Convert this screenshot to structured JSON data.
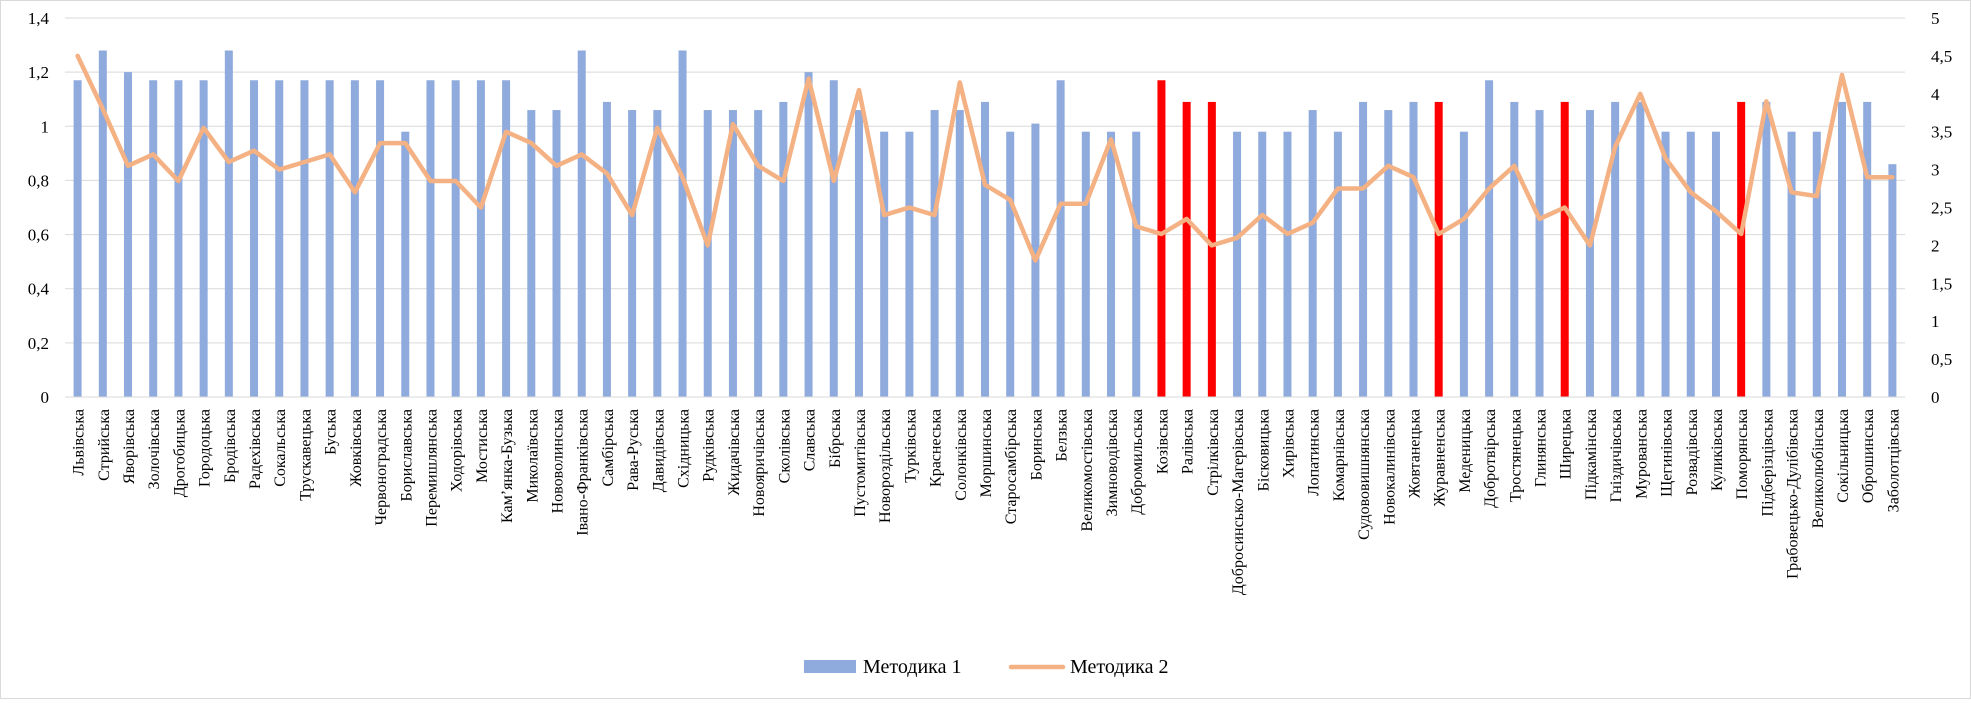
{
  "chart_data": {
    "type": "bar",
    "title": "",
    "xlabel": "",
    "ylabel": "",
    "ylim": [
      0,
      1.4
    ],
    "y2lim": [
      0,
      5
    ],
    "yticks": [
      "0",
      "0,2",
      "0,4",
      "0,6",
      "0,8",
      "1",
      "1,2",
      "1,4"
    ],
    "y2ticks": [
      "0",
      "0,5",
      "1",
      "1,5",
      "2",
      "2,5",
      "3",
      "3,5",
      "4",
      "4,5",
      "5"
    ],
    "grid": true,
    "legend_position": "bottom",
    "categories": [
      "Львівська",
      "Стрийська",
      "Яворівська",
      "Золочівська",
      "Дрогобицька",
      "Городоцька",
      "Бродівська",
      "Радехівська",
      "Сокальська",
      "Трускавецька",
      "Буська",
      "Жовківська",
      "Червоноградська",
      "Бориславська",
      "Перемишлянська",
      "Ходорівська",
      "Мостиська",
      "Кам’янка-Бузька",
      "Миколаївська",
      "Нововолинська",
      "Івано-Франківська",
      "Самбірська",
      "Рава-Руська",
      "Давидівська",
      "Східницька",
      "Рудківська",
      "Жидачівська",
      "Новояричівська",
      "Сколівська",
      "Славська",
      "Бібрська",
      "Пустомитівська",
      "Новороздільська",
      "Турківська",
      "Краснеська",
      "Солонківська",
      "Моршинська",
      "Старосамбірська",
      "Боринська",
      "Белзька",
      "Великомостівська",
      "Зимноводівська",
      "Добромильська",
      "Козівська",
      "Ралівська",
      "Стрілківська",
      "Добросинсько-Магерівська",
      "Бісковицька",
      "Хирівська",
      "Лопатинська",
      "Комарнівська",
      "Судововишнянська",
      "Новокалинівська",
      "Жовтанецька",
      "Журавненська",
      "Меденицька",
      "Добротвірська",
      "Тростянецька",
      "Глинянська",
      "Ширецька",
      "Підкамінська",
      "Гніздичівська",
      "Мурованська",
      "Щегинівська",
      "Розвадівська",
      "Куликівська",
      "Поморянська",
      "Підберізцівська",
      "Грабовецько-Дулібівська",
      "Великолюбінська",
      "Сокільницька",
      "Оброшинська",
      "Заболотцівська"
    ],
    "series": [
      {
        "name": "Методика 1",
        "axis": "left",
        "color": "#8faadc",
        "values": [
          1.17,
          1.28,
          1.2,
          1.17,
          1.17,
          1.17,
          1.28,
          1.17,
          1.17,
          1.17,
          1.17,
          1.17,
          1.17,
          0.98,
          1.17,
          1.17,
          1.17,
          1.17,
          1.06,
          1.06,
          1.28,
          1.09,
          1.06,
          1.06,
          1.28,
          1.06,
          1.06,
          1.06,
          1.09,
          1.2,
          1.17,
          1.06,
          0.98,
          0.98,
          1.06,
          1.06,
          1.09,
          0.98,
          1.01,
          1.17,
          0.98,
          0.98,
          0.98,
          1.17,
          1.09,
          1.09,
          0.98,
          0.98,
          0.98,
          1.06,
          0.98,
          1.09,
          1.06,
          1.09,
          1.09,
          0.98,
          1.17,
          1.09,
          1.06,
          1.09,
          1.06,
          1.09,
          1.09,
          0.98,
          0.98,
          0.98,
          1.09,
          1.09,
          0.98,
          0.98,
          1.09,
          1.09,
          0.86
        ],
        "highlight_color": "#ff0000",
        "highlighted": [
          "Козівська",
          "Ралівська",
          "Стрілківська",
          "Журавненська",
          "Ширецька",
          "Поморянська"
        ]
      },
      {
        "name": "Методика 2",
        "axis": "right",
        "color": "#f4b183",
        "values": [
          4.5,
          3.8,
          3.05,
          3.2,
          2.85,
          3.55,
          3.1,
          3.25,
          3.0,
          3.1,
          3.2,
          2.7,
          3.35,
          3.35,
          2.85,
          2.85,
          2.5,
          3.5,
          3.35,
          3.05,
          3.2,
          2.95,
          2.4,
          3.55,
          2.9,
          2.0,
          3.6,
          3.05,
          2.85,
          4.2,
          2.85,
          4.05,
          2.4,
          2.5,
          2.4,
          4.15,
          2.8,
          2.6,
          1.8,
          2.55,
          2.55,
          3.4,
          2.25,
          2.15,
          2.35,
          2.0,
          2.1,
          2.4,
          2.15,
          2.3,
          2.75,
          2.75,
          3.05,
          2.9,
          2.15,
          2.35,
          2.75,
          3.05,
          2.35,
          2.5,
          2.0,
          3.3,
          4.0,
          3.15,
          2.7,
          2.45,
          2.15,
          3.9,
          2.7,
          2.65,
          4.25,
          2.9,
          2.9
        ]
      }
    ]
  }
}
